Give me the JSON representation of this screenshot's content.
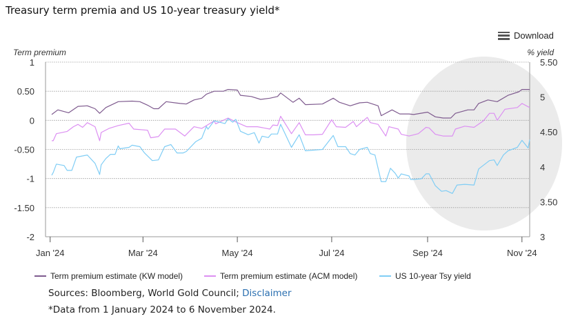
{
  "title": "Treasury term premia and US 10-year treasury yield*",
  "download_label": "Download",
  "download_icon": "menu-icon",
  "sources_label": "Sources: Bloomberg, World Gold Council; ",
  "disclaimer_link": "Disclaimer",
  "footnote": "*Data from 1 January 2024 to 6 November 2024.",
  "chart_data": {
    "type": "line",
    "title": "Treasury term premia and US 10-year treasury yield*",
    "x_range": [
      "2023-12-29",
      "2024-11-06"
    ],
    "x_ticks": [
      {
        "date": "2024-01-01",
        "label": "Jan '24"
      },
      {
        "date": "2024-03-01",
        "label": "Mar '24"
      },
      {
        "date": "2024-05-01",
        "label": "May '24"
      },
      {
        "date": "2024-07-01",
        "label": "Jul '24"
      },
      {
        "date": "2024-09-01",
        "label": "Sep '24"
      },
      {
        "date": "2024-11-01",
        "label": "Nov '24"
      }
    ],
    "y_left": {
      "label": "Term premium",
      "range": [
        -2,
        1
      ],
      "ticks": [
        {
          "v": 1,
          "label": "1"
        },
        {
          "v": 0.5,
          "label": "0.50"
        },
        {
          "v": 0,
          "label": "0"
        },
        {
          "v": -0.5,
          "label": "-0.50"
        },
        {
          "v": -1,
          "label": "-1"
        },
        {
          "v": -1.5,
          "label": "-1.50"
        },
        {
          "v": -2,
          "label": "-2"
        }
      ]
    },
    "y_right": {
      "label": "% yield",
      "range": [
        3,
        5.5
      ],
      "ticks": [
        {
          "v": 5.5,
          "label": "5.50"
        },
        {
          "v": 5,
          "label": "5"
        },
        {
          "v": 4.5,
          "label": "4.50"
        },
        {
          "v": 4,
          "label": "4"
        },
        {
          "v": 3.5,
          "label": "3.50"
        },
        {
          "v": 3,
          "label": "3"
        }
      ]
    },
    "grid": "horizontal dotted",
    "legend_position": "bottom",
    "highlight": {
      "from": "2024-09-01",
      "to": "2024-11-06",
      "shape": "ellipse",
      "color": "#ebebeb"
    },
    "series": [
      {
        "name": "Term premium estimate (KW model)",
        "axis": "left",
        "color": "#7e5a8e",
        "points": [
          [
            "2024-01-02",
            0.1
          ],
          [
            "2024-01-06",
            0.18
          ],
          [
            "2024-01-13",
            0.13
          ],
          [
            "2024-01-19",
            0.24
          ],
          [
            "2024-01-25",
            0.25
          ],
          [
            "2024-01-30",
            0.2
          ],
          [
            "2024-02-02",
            0.12
          ],
          [
            "2024-02-06",
            0.22
          ],
          [
            "2024-02-14",
            0.32
          ],
          [
            "2024-02-23",
            0.33
          ],
          [
            "2024-02-28",
            0.32
          ],
          [
            "2024-03-04",
            0.26
          ],
          [
            "2024-03-08",
            0.2
          ],
          [
            "2024-03-11",
            0.2
          ],
          [
            "2024-03-16",
            0.32
          ],
          [
            "2024-03-25",
            0.29
          ],
          [
            "2024-03-29",
            0.28
          ],
          [
            "2024-04-03",
            0.35
          ],
          [
            "2024-04-08",
            0.38
          ],
          [
            "2024-04-11",
            0.45
          ],
          [
            "2024-04-16",
            0.5
          ],
          [
            "2024-04-22",
            0.5
          ],
          [
            "2024-04-25",
            0.53
          ],
          [
            "2024-05-01",
            0.52
          ],
          [
            "2024-05-03",
            0.43
          ],
          [
            "2024-05-10",
            0.41
          ],
          [
            "2024-05-16",
            0.36
          ],
          [
            "2024-05-22",
            0.38
          ],
          [
            "2024-05-27",
            0.41
          ],
          [
            "2024-05-29",
            0.47
          ],
          [
            "2024-06-06",
            0.31
          ],
          [
            "2024-06-10",
            0.38
          ],
          [
            "2024-06-14",
            0.27
          ],
          [
            "2024-06-25",
            0.28
          ],
          [
            "2024-07-02",
            0.38
          ],
          [
            "2024-07-06",
            0.31
          ],
          [
            "2024-07-13",
            0.25
          ],
          [
            "2024-07-19",
            0.3
          ],
          [
            "2024-07-24",
            0.31
          ],
          [
            "2024-07-31",
            0.25
          ],
          [
            "2024-08-02",
            0.08
          ],
          [
            "2024-08-09",
            0.18
          ],
          [
            "2024-08-14",
            0.11
          ],
          [
            "2024-08-20",
            0.11
          ],
          [
            "2024-08-23",
            0.1
          ],
          [
            "2024-09-01",
            0.14
          ],
          [
            "2024-09-06",
            0.06
          ],
          [
            "2024-09-11",
            0.04
          ],
          [
            "2024-09-16",
            0.04
          ],
          [
            "2024-09-19",
            0.12
          ],
          [
            "2024-09-27",
            0.18
          ],
          [
            "2024-10-01",
            0.18
          ],
          [
            "2024-10-04",
            0.29
          ],
          [
            "2024-10-10",
            0.35
          ],
          [
            "2024-10-16",
            0.32
          ],
          [
            "2024-10-23",
            0.43
          ],
          [
            "2024-10-30",
            0.49
          ],
          [
            "2024-11-01",
            0.53
          ],
          [
            "2024-11-06",
            0.53
          ]
        ]
      },
      {
        "name": "Term premium estimate (ACM model)",
        "axis": "left",
        "color": "#dc8ff2",
        "points": [
          [
            "2024-01-02",
            -0.35
          ],
          [
            "2024-01-03",
            -0.35
          ],
          [
            "2024-01-05",
            -0.23
          ],
          [
            "2024-01-12",
            -0.19
          ],
          [
            "2024-01-16",
            -0.11
          ],
          [
            "2024-01-19",
            -0.07
          ],
          [
            "2024-01-22",
            -0.12
          ],
          [
            "2024-01-25",
            -0.04
          ],
          [
            "2024-01-30",
            -0.11
          ],
          [
            "2024-02-02",
            -0.35
          ],
          [
            "2024-02-03",
            -0.21
          ],
          [
            "2024-02-08",
            -0.14
          ],
          [
            "2024-02-14",
            -0.09
          ],
          [
            "2024-02-21",
            -0.05
          ],
          [
            "2024-02-24",
            -0.15
          ],
          [
            "2024-03-04",
            -0.17
          ],
          [
            "2024-03-06",
            -0.3
          ],
          [
            "2024-03-11",
            -0.28
          ],
          [
            "2024-03-15",
            -0.15
          ],
          [
            "2024-03-22",
            -0.15
          ],
          [
            "2024-03-28",
            -0.27
          ],
          [
            "2024-04-03",
            -0.11
          ],
          [
            "2024-04-08",
            -0.14
          ],
          [
            "2024-04-16",
            -0.01
          ],
          [
            "2024-04-17",
            -0.06
          ],
          [
            "2024-04-25",
            0.04
          ],
          [
            "2024-05-01",
            -0.04
          ],
          [
            "2024-05-07",
            -0.11
          ],
          [
            "2024-05-14",
            -0.11
          ],
          [
            "2024-05-22",
            -0.15
          ],
          [
            "2024-05-24",
            -0.08
          ],
          [
            "2024-05-27",
            -0.09
          ],
          [
            "2024-05-29",
            0.07
          ],
          [
            "2024-06-05",
            -0.23
          ],
          [
            "2024-06-10",
            -0.04
          ],
          [
            "2024-06-14",
            -0.25
          ],
          [
            "2024-06-19",
            -0.25
          ],
          [
            "2024-06-25",
            -0.24
          ],
          [
            "2024-07-01",
            0.01
          ],
          [
            "2024-07-04",
            -0.11
          ],
          [
            "2024-07-10",
            -0.12
          ],
          [
            "2024-07-15",
            -0.02
          ],
          [
            "2024-07-17",
            -0.11
          ],
          [
            "2024-07-24",
            0.05
          ],
          [
            "2024-07-26",
            -0.04
          ],
          [
            "2024-07-31",
            -0.07
          ],
          [
            "2024-08-05",
            -0.27
          ],
          [
            "2024-08-07",
            -0.11
          ],
          [
            "2024-08-13",
            -0.15
          ],
          [
            "2024-08-15",
            -0.24
          ],
          [
            "2024-08-20",
            -0.27
          ],
          [
            "2024-08-26",
            -0.23
          ],
          [
            "2024-08-31",
            -0.12
          ],
          [
            "2024-09-02",
            -0.13
          ],
          [
            "2024-09-06",
            -0.24
          ],
          [
            "2024-09-11",
            -0.27
          ],
          [
            "2024-09-17",
            -0.27
          ],
          [
            "2024-09-19",
            -0.15
          ],
          [
            "2024-09-25",
            -0.1
          ],
          [
            "2024-10-01",
            -0.12
          ],
          [
            "2024-10-07",
            -0.01
          ],
          [
            "2024-10-11",
            0.12
          ],
          [
            "2024-10-14",
            0.12
          ],
          [
            "2024-10-16",
            0.0
          ],
          [
            "2024-10-21",
            0.19
          ],
          [
            "2024-10-29",
            0.22
          ],
          [
            "2024-11-01",
            0.29
          ],
          [
            "2024-11-06",
            0.22
          ]
        ]
      },
      {
        "name": "US 10-year Tsy yield",
        "axis": "right",
        "color": "#7fcdf5",
        "points": [
          [
            "2024-01-02",
            3.88
          ],
          [
            "2024-01-03",
            3.92
          ],
          [
            "2024-01-05",
            4.04
          ],
          [
            "2024-01-10",
            4.02
          ],
          [
            "2024-01-12",
            3.95
          ],
          [
            "2024-01-15",
            3.95
          ],
          [
            "2024-01-18",
            4.14
          ],
          [
            "2024-01-25",
            4.17
          ],
          [
            "2024-01-30",
            4.05
          ],
          [
            "2024-02-02",
            3.89
          ],
          [
            "2024-02-03",
            4.03
          ],
          [
            "2024-02-06",
            4.12
          ],
          [
            "2024-02-09",
            4.18
          ],
          [
            "2024-02-12",
            4.18
          ],
          [
            "2024-02-14",
            4.3
          ],
          [
            "2024-02-15",
            4.26
          ],
          [
            "2024-02-21",
            4.28
          ],
          [
            "2024-02-23",
            4.31
          ],
          [
            "2024-02-28",
            4.29
          ],
          [
            "2024-03-02",
            4.2
          ],
          [
            "2024-03-07",
            4.09
          ],
          [
            "2024-03-11",
            4.1
          ],
          [
            "2024-03-15",
            4.29
          ],
          [
            "2024-03-19",
            4.32
          ],
          [
            "2024-03-23",
            4.2
          ],
          [
            "2024-03-27",
            4.2
          ],
          [
            "2024-03-29",
            4.22
          ],
          [
            "2024-04-04",
            4.36
          ],
          [
            "2024-04-08",
            4.41
          ],
          [
            "2024-04-11",
            4.58
          ],
          [
            "2024-04-12",
            4.54
          ],
          [
            "2024-04-16",
            4.66
          ],
          [
            "2024-04-23",
            4.62
          ],
          [
            "2024-04-25",
            4.69
          ],
          [
            "2024-04-28",
            4.64
          ],
          [
            "2024-04-30",
            4.68
          ],
          [
            "2024-05-03",
            4.51
          ],
          [
            "2024-05-08",
            4.46
          ],
          [
            "2024-05-12",
            4.49
          ],
          [
            "2024-05-15",
            4.34
          ],
          [
            "2024-05-17",
            4.44
          ],
          [
            "2024-05-21",
            4.42
          ],
          [
            "2024-05-23",
            4.47
          ],
          [
            "2024-05-27",
            4.47
          ],
          [
            "2024-05-29",
            4.61
          ],
          [
            "2024-06-05",
            4.28
          ],
          [
            "2024-06-10",
            4.46
          ],
          [
            "2024-06-14",
            4.23
          ],
          [
            "2024-06-25",
            4.25
          ],
          [
            "2024-07-02",
            4.45
          ],
          [
            "2024-07-05",
            4.29
          ],
          [
            "2024-07-10",
            4.29
          ],
          [
            "2024-07-13",
            4.19
          ],
          [
            "2024-07-16",
            4.17
          ],
          [
            "2024-07-19",
            4.25
          ],
          [
            "2024-07-24",
            4.28
          ],
          [
            "2024-07-26",
            4.19
          ],
          [
            "2024-07-29",
            4.17
          ],
          [
            "2024-08-02",
            3.79
          ],
          [
            "2024-08-05",
            3.79
          ],
          [
            "2024-08-08",
            3.98
          ],
          [
            "2024-08-11",
            3.91
          ],
          [
            "2024-08-13",
            3.84
          ],
          [
            "2024-08-15",
            3.9
          ],
          [
            "2024-08-20",
            3.87
          ],
          [
            "2024-08-21",
            3.82
          ],
          [
            "2024-08-23",
            3.82
          ],
          [
            "2024-08-28",
            3.83
          ],
          [
            "2024-08-31",
            3.9
          ],
          [
            "2024-09-02",
            3.9
          ],
          [
            "2024-09-06",
            3.73
          ],
          [
            "2024-09-10",
            3.65
          ],
          [
            "2024-09-13",
            3.66
          ],
          [
            "2024-09-17",
            3.62
          ],
          [
            "2024-09-20",
            3.74
          ],
          [
            "2024-09-25",
            3.75
          ],
          [
            "2024-10-01",
            3.74
          ],
          [
            "2024-10-04",
            3.97
          ],
          [
            "2024-10-11",
            4.09
          ],
          [
            "2024-10-14",
            4.1
          ],
          [
            "2024-10-16",
            4.02
          ],
          [
            "2024-10-20",
            4.17
          ],
          [
            "2024-10-23",
            4.23
          ],
          [
            "2024-10-29",
            4.28
          ],
          [
            "2024-11-01",
            4.38
          ],
          [
            "2024-11-05",
            4.27
          ],
          [
            "2024-11-06",
            4.39
          ]
        ]
      }
    ]
  }
}
